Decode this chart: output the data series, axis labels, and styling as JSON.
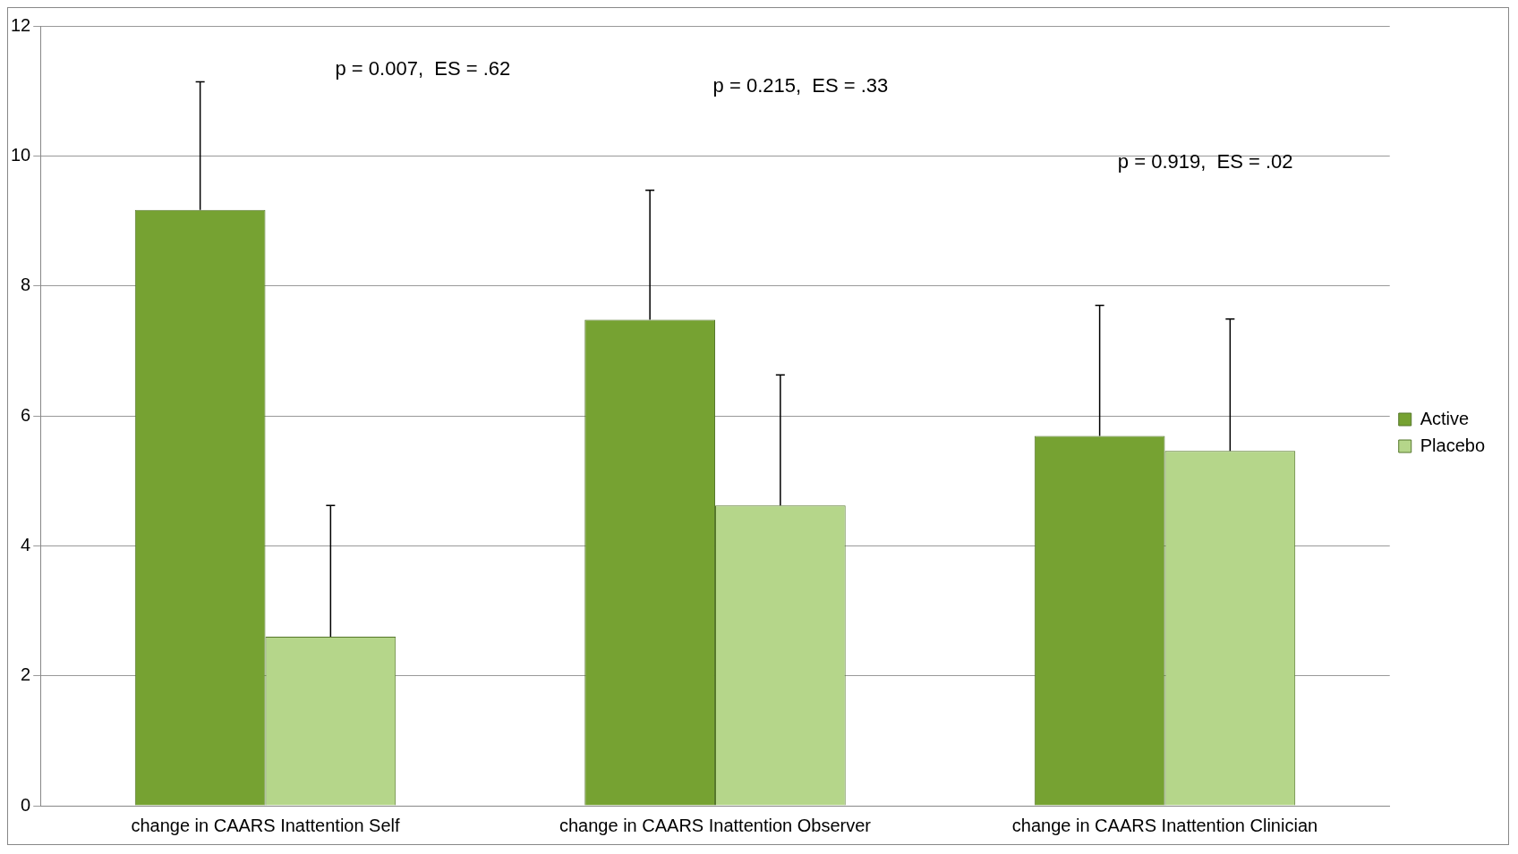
{
  "chart_data": {
    "type": "bar",
    "categories": [
      "change in CAARS Inattention Self",
      "change in CAARS Inattention Observer",
      "change in CAARS Inattention Clinician"
    ],
    "series": [
      {
        "name": "Active",
        "color": "#76a232",
        "values": [
          9.17,
          7.48,
          5.69
        ],
        "errors": [
          [
            9.17,
            11.14
          ],
          [
            7.48,
            9.47
          ],
          [
            5.69,
            7.7
          ]
        ]
      },
      {
        "name": "Placebo",
        "color": "#b5d68a",
        "values": [
          2.6,
          4.62,
          5.46
        ],
        "errors": [
          [
            2.6,
            4.62
          ],
          [
            4.62,
            6.63
          ],
          [
            5.46,
            7.49
          ]
        ]
      }
    ],
    "ylim": [
      0,
      12
    ],
    "yticks": [
      0,
      2,
      4,
      6,
      8,
      10,
      12
    ],
    "grid": "y",
    "legend": "right",
    "annotations": [
      "p = 0.007,  ES = .62",
      "p = 0.215,  ES = .33",
      "p = 0.919,  ES = .02"
    ]
  }
}
